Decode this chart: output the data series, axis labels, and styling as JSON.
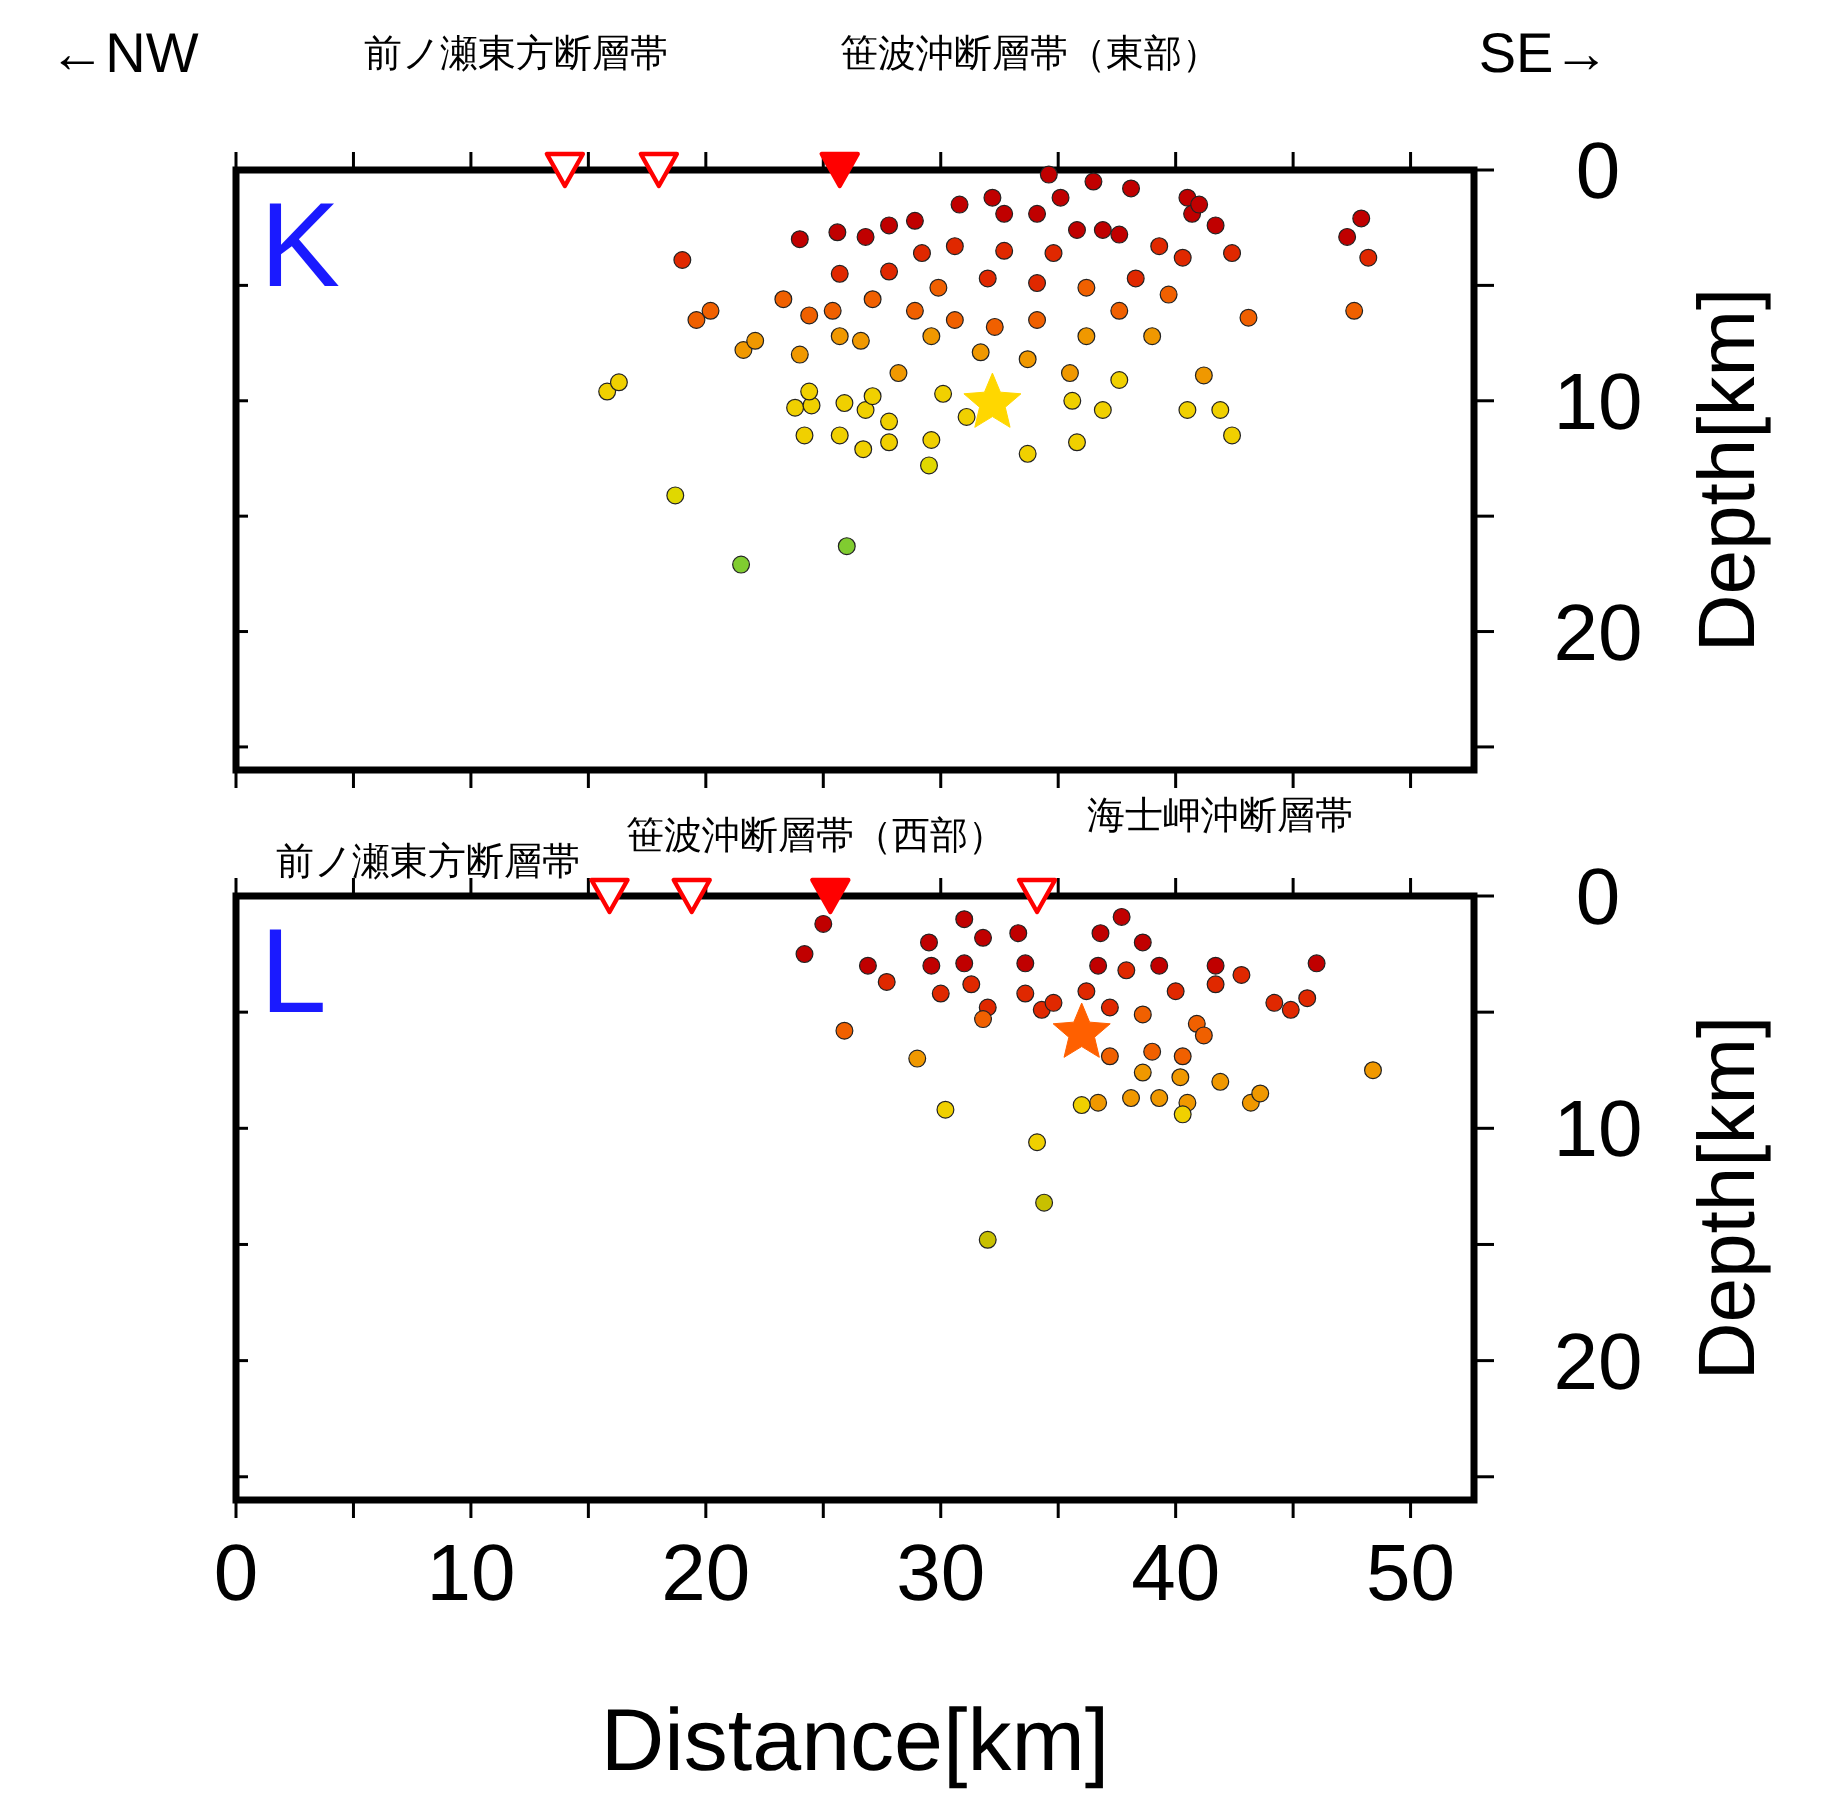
{
  "chart_data": [
    {
      "type": "scatter",
      "title": "K",
      "ylabel": "Depth[km]",
      "annotations": [
        "←NW",
        "SE→"
      ],
      "xlim": [
        0,
        52.7
      ],
      "ylim": [
        26,
        0
      ],
      "tick_labels": "y",
      "xticks": [
        0,
        {
          "value": 5,
          "label": null
        },
        10,
        {
          "value": 15,
          "label": null
        },
        20,
        {
          "value": 25,
          "label": null
        },
        30,
        {
          "value": 35,
          "label": null
        },
        40,
        {
          "value": 45,
          "label": null
        },
        50
      ],
      "yticks": [
        0,
        {
          "value": 5,
          "label": null
        },
        10,
        {
          "value": 15,
          "label": null
        },
        20,
        {
          "value": 25,
          "label": null
        }
      ],
      "series": [
        {
          "color": "#c00000",
          "marker": "circle",
          "x": [
            34.6,
            36.5,
            38.1,
            40.5,
            40.7,
            41.7,
            47.9,
            47.3,
            24.0,
            25.6,
            26.8,
            27.8,
            28.9,
            30.8,
            32.2,
            32.7,
            34.1,
            35.8,
            37.6,
            36.9,
            35.1,
            41.0
          ],
          "values": [
            0.2,
            0.5,
            0.8,
            1.2,
            1.9,
            2.4,
            2.1,
            2.9,
            3.0,
            2.7,
            2.9,
            2.4,
            2.2,
            1.5,
            1.2,
            1.9,
            1.9,
            2.6,
            2.8,
            2.6,
            1.2,
            1.5
          ]
        },
        {
          "color": "#e02800",
          "marker": "circle",
          "x": [
            42.4,
            48.2,
            19.0,
            25.7,
            39.3,
            40.3,
            34.8,
            32.7,
            30.6,
            29.2,
            27.8,
            32.0,
            34.1,
            38.3
          ],
          "values": [
            3.6,
            3.8,
            3.9,
            4.5,
            3.3,
            3.8,
            3.6,
            3.5,
            3.3,
            3.6,
            4.4,
            4.7,
            4.9,
            4.7
          ]
        },
        {
          "color": "#f06000",
          "marker": "circle",
          "x": [
            47.6,
            43.1,
            20.2,
            19.6,
            29.9,
            36.2,
            39.7,
            37.6,
            34.1,
            32.3,
            30.6,
            28.9,
            23.3,
            24.4,
            25.4,
            27.1
          ],
          "values": [
            6.1,
            6.4,
            6.1,
            6.5,
            5.1,
            5.1,
            5.4,
            6.1,
            6.5,
            6.8,
            6.5,
            6.1,
            5.6,
            6.3,
            6.1,
            5.6
          ]
        },
        {
          "color": "#f09800",
          "marker": "circle",
          "x": [
            41.2,
            21.6,
            22.1,
            39.0,
            36.2,
            29.6,
            31.7,
            33.7,
            35.5,
            28.2,
            25.7,
            26.6,
            24.0
          ],
          "values": [
            8.9,
            7.8,
            7.4,
            7.2,
            7.2,
            7.2,
            7.9,
            8.2,
            8.8,
            8.8,
            7.2,
            7.4,
            8.0
          ]
        },
        {
          "color": "#f0d000",
          "marker": "circle",
          "x": [
            40.5,
            41.9,
            42.4,
            15.8,
            16.3,
            37.6,
            36.9,
            35.6,
            35.8,
            33.7,
            31.1,
            29.6,
            27.8,
            27.8,
            26.7,
            25.7,
            24.2,
            23.8,
            24.5,
            24.4,
            25.9,
            26.8,
            27.1,
            30.1
          ],
          "values": [
            10.4,
            10.4,
            11.5,
            9.6,
            9.2,
            9.1,
            10.4,
            10.0,
            11.8,
            12.3,
            10.7,
            11.7,
            10.9,
            11.8,
            12.1,
            11.5,
            11.5,
            10.3,
            10.2,
            9.6,
            10.1,
            10.4,
            9.8,
            9.7
          ]
        },
        {
          "color": "#e0d800",
          "marker": "circle",
          "x": [
            29.5,
            18.7
          ],
          "values": [
            12.8,
            14.1
          ]
        },
        {
          "color": "#80cc30",
          "marker": "circle",
          "x": [
            21.5,
            26.0
          ],
          "values": [
            17.1,
            16.3
          ]
        },
        {
          "color": "#ffd700",
          "marker": "star",
          "x": [
            32.2
          ],
          "values": [
            10.1
          ]
        },
        {
          "name": "前ノ瀬東方断層帯",
          "color": "#ff0000",
          "marker": "triangle",
          "colors": [
            "#ffffff",
            "#ffffff"
          ],
          "x": [
            14.0,
            18.0
          ],
          "values": [
            0,
            0
          ]
        },
        {
          "name": "笹波沖断層帯（東部）",
          "color": "#ff0000",
          "marker": "triangle",
          "colors": [
            "#ff0000"
          ],
          "x": [
            25.7
          ],
          "values": [
            0
          ]
        }
      ]
    },
    {
      "type": "scatter",
      "title": "L",
      "xlabel": "Distance[km]",
      "ylabel": "Depth[km]",
      "xlim": [
        0,
        52.7
      ],
      "ylim": [
        26,
        0
      ],
      "xticks": [
        0,
        {
          "value": 5,
          "label": null
        },
        10,
        {
          "value": 15,
          "label": null
        },
        20,
        {
          "value": 25,
          "label": null
        },
        30,
        {
          "value": 35,
          "label": null
        },
        40,
        {
          "value": 45,
          "label": null
        },
        50
      ],
      "yticks": [
        0,
        {
          "value": 5,
          "label": null
        },
        10,
        {
          "value": 15,
          "label": null
        },
        20,
        {
          "value": 25,
          "label": null
        }
      ],
      "series": [
        {
          "color": "#c00000",
          "marker": "circle",
          "x": [
            25.0,
            24.2,
            26.9,
            29.5,
            31.0,
            31.8,
            29.6,
            31.0,
            33.3,
            33.6,
            36.8,
            37.7,
            38.6,
            36.7,
            39.3,
            41.7,
            46.0
          ],
          "values": [
            1.2,
            2.5,
            3.0,
            2.0,
            1.0,
            1.8,
            3.0,
            2.9,
            1.6,
            2.9,
            1.6,
            0.9,
            2.0,
            3.0,
            3.0,
            3.0,
            2.9
          ]
        },
        {
          "color": "#e02800",
          "marker": "circle",
          "x": [
            27.7,
            31.3,
            30.0,
            32.0,
            33.6,
            34.3,
            34.8,
            37.9,
            40.0,
            36.2,
            37.2,
            42.8,
            41.7,
            44.2,
            44.9,
            45.6
          ],
          "values": [
            3.7,
            3.8,
            4.2,
            4.8,
            4.2,
            4.9,
            4.6,
            3.2,
            4.1,
            4.1,
            4.8,
            3.4,
            3.8,
            4.6,
            4.9,
            4.4
          ]
        },
        {
          "color": "#f06000",
          "marker": "circle",
          "x": [
            25.9,
            31.8,
            38.6,
            40.9,
            41.2,
            39.0,
            40.3,
            37.2
          ],
          "values": [
            5.8,
            5.3,
            5.1,
            5.5,
            6.0,
            6.7,
            6.9,
            6.9
          ]
        },
        {
          "color": "#f09800",
          "marker": "circle",
          "x": [
            29.0,
            38.6,
            40.2,
            38.1,
            39.3,
            40.5,
            36.7,
            48.4,
            41.9,
            43.2,
            43.6
          ],
          "values": [
            7.0,
            7.6,
            7.8,
            8.7,
            8.7,
            8.9,
            8.9,
            7.5,
            8.0,
            8.9,
            8.5
          ]
        },
        {
          "color": "#f0d000",
          "marker": "circle",
          "x": [
            30.2,
            34.1,
            40.3,
            36.0
          ],
          "values": [
            9.2,
            10.6,
            9.4,
            9.0
          ]
        },
        {
          "color": "#c8c000",
          "marker": "circle",
          "x": [
            34.4,
            32.0
          ],
          "values": [
            13.2,
            14.8
          ]
        },
        {
          "color": "#ff6000",
          "marker": "star",
          "x": [
            36.0
          ],
          "values": [
            5.9
          ]
        },
        {
          "name": "前ノ瀬東方断層帯",
          "color": "#ff0000",
          "marker": "triangle",
          "colors": [
            "#ffffff",
            "#ffffff"
          ],
          "x": [
            15.9,
            19.4
          ],
          "values": [
            0,
            0
          ]
        },
        {
          "name": "笹波沖断層帯（西部）",
          "color": "#ff0000",
          "marker": "triangle",
          "colors": [
            "#ff0000"
          ],
          "x": [
            25.3
          ],
          "values": [
            0
          ]
        },
        {
          "name": "海士岬沖断層帯",
          "color": "#ff0000",
          "marker": "triangle",
          "colors": [
            "#ffffff"
          ],
          "x": [
            34.1
          ],
          "values": [
            0
          ]
        }
      ]
    }
  ]
}
